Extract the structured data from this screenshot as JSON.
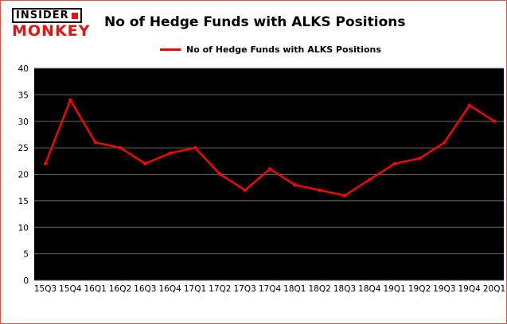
{
  "page": {
    "border_color": "#d9534f",
    "background": "#ffffff"
  },
  "logo": {
    "line1": "INSIDER",
    "line2": "MONKEY",
    "accent": "#e8140c"
  },
  "header": {
    "title": "No of Hedge Funds with ALKS Positions"
  },
  "legend": {
    "label": "No of Hedge Funds with ALKS Positions",
    "line_color": "#ff0000"
  },
  "chart_data": {
    "type": "line",
    "title": "No of Hedge Funds with ALKS Positions",
    "categories": [
      "15Q3",
      "15Q4",
      "16Q1",
      "16Q2",
      "16Q3",
      "16Q4",
      "17Q1",
      "17Q2",
      "17Q3",
      "17Q4",
      "18Q1",
      "18Q2",
      "18Q3",
      "18Q4",
      "19Q1",
      "19Q2",
      "19Q3",
      "19Q4",
      "20Q1"
    ],
    "series": [
      {
        "name": "No of Hedge Funds with ALKS Positions",
        "color": "#ff0000",
        "values": [
          22,
          34,
          26,
          25,
          22,
          24,
          25,
          20,
          17,
          21,
          18,
          17,
          16,
          19,
          22,
          23,
          26,
          33,
          30
        ]
      }
    ],
    "xlabel": "",
    "ylabel": "",
    "ylim": [
      0,
      40
    ],
    "yticks": [
      0,
      5,
      10,
      15,
      20,
      25,
      30,
      35,
      40
    ],
    "grid": true,
    "plot_background": "#000000",
    "gridline_color": "#666666",
    "legend_position": "top"
  }
}
